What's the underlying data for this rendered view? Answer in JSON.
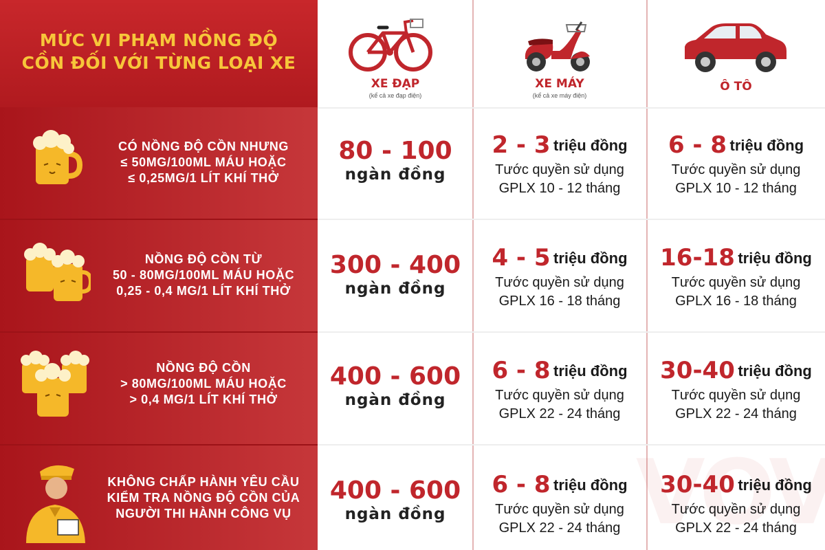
{
  "title": {
    "line1": "MỨC VI PHẠM NỒNG ĐỘ",
    "line2": "CỒN ĐỐI VỚI TỪNG LOẠI XE"
  },
  "vehicles": [
    {
      "label": "XE ĐẠP",
      "sub": "(kể cả xe đạp điện)"
    },
    {
      "label": "XE MÁY",
      "sub": "(kể cả xe máy điện)"
    },
    {
      "label": "Ô TÔ",
      "sub": ""
    }
  ],
  "rows": [
    {
      "condition": [
        "CÓ NỒNG ĐỘ CỒN NHƯNG",
        "≤ 50MG/100ML MÁU HOẶC",
        "≤ 0,25MG/1 LÍT KHÍ THỞ"
      ],
      "bike": {
        "amount": "80 - 100",
        "unit": "ngàn đồng"
      },
      "moto": {
        "amount": "2 - 3",
        "unit": "triệu đồng",
        "line2": "Tước quyền sử dụng",
        "line3": "GPLX 10 - 12 tháng"
      },
      "car": {
        "amount": "6 - 8",
        "unit": "triệu đồng",
        "line2": "Tước quyền sử dụng",
        "line3": "GPLX 10 - 12 tháng"
      }
    },
    {
      "condition": [
        "NỒNG ĐỘ CỒN TỪ",
        "50 - 80MG/100ML MÁU HOẶC",
        "0,25 - 0,4 MG/1 LÍT KHÍ THỞ"
      ],
      "bike": {
        "amount": "300 - 400",
        "unit": "ngàn đồng"
      },
      "moto": {
        "amount": "4 - 5",
        "unit": "triệu đồng",
        "line2": "Tước quyền sử dụng",
        "line3": "GPLX 16 - 18 tháng"
      },
      "car": {
        "amount": "16-18",
        "unit": "triệu đồng",
        "line2": "Tước quyền sử dụng",
        "line3": "GPLX 16 - 18 tháng"
      }
    },
    {
      "condition": [
        "NỒNG ĐỘ CỒN",
        "> 80MG/100ML MÁU HOẶC",
        "> 0,4 MG/1 LÍT KHÍ THỞ"
      ],
      "bike": {
        "amount": "400 - 600",
        "unit": "ngàn đồng"
      },
      "moto": {
        "amount": "6 - 8",
        "unit": "triệu đồng",
        "line2": "Tước quyền sử dụng",
        "line3": "GPLX 22 - 24 tháng"
      },
      "car": {
        "amount": "30-40",
        "unit": "triệu đồng",
        "line2": "Tước quyền sử dụng",
        "line3": "GPLX 22 - 24 tháng"
      }
    },
    {
      "condition": [
        "KHÔNG CHẤP HÀNH YÊU CẦU",
        "KIỂM TRA NỒNG ĐỘ CỒN CỦA",
        "NGƯỜI THI HÀNH CÔNG VỤ"
      ],
      "bike": {
        "amount": "400 - 600",
        "unit": "ngàn đồng"
      },
      "moto": {
        "amount": "6 - 8",
        "unit": "triệu đồng",
        "line2": "Tước quyền sử dụng",
        "line3": "GPLX 22 - 24 tháng"
      },
      "car": {
        "amount": "30-40",
        "unit": "triệu đồng",
        "line2": "Tước quyền sử dụng",
        "line3": "GPLX 22 - 24 tháng"
      }
    }
  ],
  "icons": {
    "bicycle": "bicycle-icon",
    "scooter": "scooter-icon",
    "car": "car-icon",
    "beer1": "beer-mug-icon",
    "beer2": "two-beer-mugs-icon",
    "beer3": "three-beer-mugs-icon",
    "officer": "traffic-officer-icon"
  },
  "watermark": "VOV",
  "colors": {
    "red": "#c0262c",
    "panel": "#b3191f",
    "gold": "#f7c63a",
    "beer": "#f5b829"
  }
}
